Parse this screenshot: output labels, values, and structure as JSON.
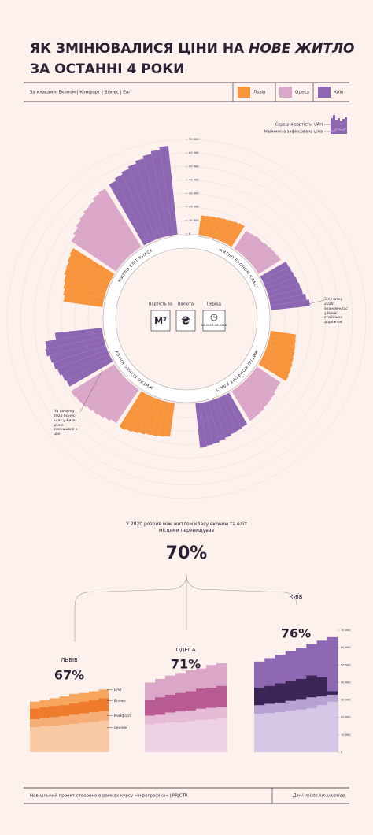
{
  "header": {
    "title_line1": "ЯК ЗМІНЮВАЛИСЯ ЦІНИ НА ",
    "title_em": "НОВЕ ЖИТЛО",
    "title_line2": "ЗА ОСТАННІ 4 РОКИ",
    "subtitle": "За класами: Економ | Комфорт | Бізнес | Еліт"
  },
  "legend": [
    {
      "name": "Львів",
      "color": "#f7943c"
    },
    {
      "name": "Одеса",
      "color": "#dba7c9"
    },
    {
      "name": "Київ",
      "color": "#8d67b2"
    }
  ],
  "key": {
    "average": "Середня вартість, UAH",
    "lowest": "Найнижча зафіксована ціна"
  },
  "radial": {
    "rlim": [
      0,
      70000
    ],
    "ticks": [
      0,
      {
        "value": 10000,
        "label": "10 000"
      },
      {
        "value": 20000,
        "label": "20 000"
      },
      {
        "value": 30000,
        "label": "30 000"
      },
      {
        "value": 40000,
        "label": "40 000"
      },
      {
        "value": 50000,
        "label": "50 000"
      },
      {
        "value": 60000,
        "label": "60 000"
      },
      {
        "value": 70000,
        "label": "70 000"
      }
    ],
    "classes": [
      {
        "label": "ЖИТЛО ЕКОНОМ КЛАСУ",
        "short": "Економ",
        "series": [
          [
            14500,
            15000,
            15200,
            15800,
            16300,
            16900,
            17500,
            18200
          ],
          [
            16000,
            16500,
            17200,
            17000,
            17800,
            18500,
            18900,
            19400
          ],
          [
            22000,
            22500,
            23000,
            23800,
            24500,
            25200,
            27000,
            29000
          ]
        ]
      },
      {
        "label": "ЖИТЛО КОМФОРТ КЛАСУ",
        "short": "Комфорт",
        "series": [
          [
            19000,
            19500,
            20200,
            20800,
            21500,
            22300,
            23000,
            23600
          ],
          [
            21000,
            21500,
            22800,
            23400,
            24000,
            25000,
            25500,
            26000
          ],
          [
            27000,
            27800,
            28500,
            29500,
            30500,
            31500,
            32000,
            33000
          ]
        ]
      },
      {
        "label": "ЖИТЛО БІЗНЕС КЛАСУ",
        "short": "Бізнес",
        "series": [
          [
            25000,
            25800,
            26500,
            27000,
            28000,
            29000,
            30000,
            31000
          ],
          [
            30000,
            31500,
            33000,
            34000,
            35000,
            36500,
            37000,
            38000
          ],
          [
            37000,
            38000,
            39500,
            41000,
            42000,
            44000,
            43000,
            35000
          ]
        ]
      },
      {
        "label": "ЖИТЛО ЕЛІТ КЛАСУ",
        "short": "Еліт",
        "series": [
          [
            29000,
            30000,
            31000,
            32000,
            33500,
            34000,
            35000,
            36000
          ],
          [
            40000,
            42000,
            44000,
            45500,
            47000,
            48000,
            50000,
            51000
          ],
          [
            52000,
            54000,
            56000,
            58000,
            60000,
            62000,
            64000,
            66000
          ]
        ]
      }
    ],
    "center": {
      "unit_label": "Вартість за",
      "unit": "М²",
      "currency_label": "Валюта",
      "currency": "₴",
      "period_label": "Період",
      "period": "01.2017-08.2020"
    },
    "notes": [
      "З початку 2020 економ-клас у Києві стабільно дорожчає",
      "На початку 2020 бізнес-клас у Києві дуже зменшився в ціні"
    ]
  },
  "summary": {
    "text": "У 2020 розрив між житлом класу економ та еліт місцями перевищував",
    "gap": "70%"
  },
  "cities": [
    {
      "name": "ЛЬВІВ",
      "gap": "67%",
      "layer_colors": [
        "#f9c9a3",
        "#f6ae76",
        "#ef7b2c",
        "#f8a55d"
      ]
    },
    {
      "name": "ОДЕСА",
      "gap": "71%",
      "layer_colors": [
        "#eed2e3",
        "#e5bbd6",
        "#b85a93",
        "#dba7c9"
      ]
    },
    {
      "name": "КИЇВ",
      "gap": "76%",
      "layer_colors": [
        "#d5c8e6",
        "#b8a2d3",
        "#3d2457",
        "#8d67b2"
      ]
    }
  ],
  "footer": {
    "left": "Навчальний проект створено в рамках курсу «Інфографіка» | PRJCTR",
    "right": "Дані: misto.lun.ua/price"
  }
}
